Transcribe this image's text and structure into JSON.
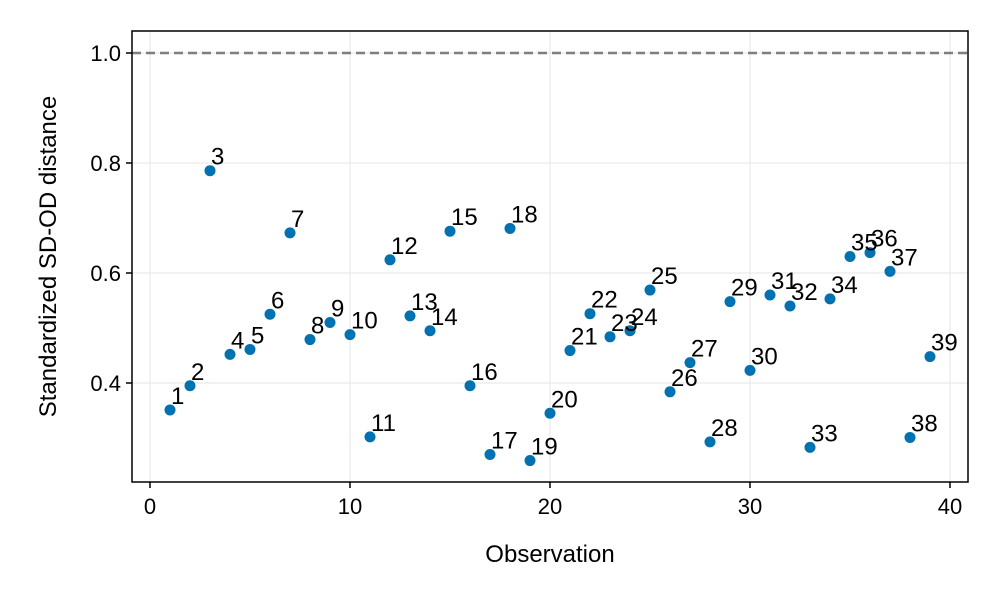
{
  "chart_data": {
    "type": "scatter",
    "xlabel": "Observation",
    "ylabel": "Standardized SD-OD distance",
    "xlim": [
      -0.9,
      40.9
    ],
    "ylim": [
      0.22,
      1.04
    ],
    "xticks": [
      0,
      10,
      20,
      30,
      40
    ],
    "yticks": [
      0.4,
      0.6,
      0.8,
      1.0
    ],
    "ytick_labels": [
      "0.4",
      "0.6",
      "0.8",
      "1.0"
    ],
    "grid": true,
    "cutoff_line": 1.0,
    "point_color": "#0072B2",
    "cutoff_color": "#7f7f7f",
    "points": [
      {
        "x": 1,
        "y": 0.351,
        "label": "1"
      },
      {
        "x": 2,
        "y": 0.395,
        "label": "2"
      },
      {
        "x": 3,
        "y": 0.786,
        "label": "3"
      },
      {
        "x": 4,
        "y": 0.452,
        "label": "4"
      },
      {
        "x": 5,
        "y": 0.461,
        "label": "5"
      },
      {
        "x": 6,
        "y": 0.525,
        "label": "6"
      },
      {
        "x": 7,
        "y": 0.673,
        "label": "7"
      },
      {
        "x": 8,
        "y": 0.479,
        "label": "8"
      },
      {
        "x": 9,
        "y": 0.51,
        "label": "9"
      },
      {
        "x": 10,
        "y": 0.488,
        "label": "10"
      },
      {
        "x": 11,
        "y": 0.302,
        "label": "11"
      },
      {
        "x": 12,
        "y": 0.624,
        "label": "12"
      },
      {
        "x": 13,
        "y": 0.522,
        "label": "13"
      },
      {
        "x": 14,
        "y": 0.495,
        "label": "14"
      },
      {
        "x": 15,
        "y": 0.676,
        "label": "15"
      },
      {
        "x": 16,
        "y": 0.395,
        "label": "16"
      },
      {
        "x": 17,
        "y": 0.27,
        "label": "17"
      },
      {
        "x": 18,
        "y": 0.681,
        "label": "18"
      },
      {
        "x": 19,
        "y": 0.259,
        "label": "19"
      },
      {
        "x": 20,
        "y": 0.345,
        "label": "20"
      },
      {
        "x": 21,
        "y": 0.459,
        "label": "21"
      },
      {
        "x": 22,
        "y": 0.526,
        "label": "22"
      },
      {
        "x": 23,
        "y": 0.484,
        "label": "23"
      },
      {
        "x": 24,
        "y": 0.495,
        "label": "24"
      },
      {
        "x": 25,
        "y": 0.569,
        "label": "25"
      },
      {
        "x": 26,
        "y": 0.384,
        "label": "26"
      },
      {
        "x": 27,
        "y": 0.437,
        "label": "27"
      },
      {
        "x": 28,
        "y": 0.293,
        "label": "28"
      },
      {
        "x": 29,
        "y": 0.548,
        "label": "29"
      },
      {
        "x": 30,
        "y": 0.423,
        "label": "30"
      },
      {
        "x": 31,
        "y": 0.56,
        "label": "31"
      },
      {
        "x": 32,
        "y": 0.54,
        "label": "32"
      },
      {
        "x": 33,
        "y": 0.283,
        "label": "33"
      },
      {
        "x": 34,
        "y": 0.553,
        "label": "34"
      },
      {
        "x": 35,
        "y": 0.63,
        "label": "35"
      },
      {
        "x": 36,
        "y": 0.637,
        "label": "36"
      },
      {
        "x": 37,
        "y": 0.603,
        "label": "37"
      },
      {
        "x": 38,
        "y": 0.301,
        "label": "38"
      },
      {
        "x": 39,
        "y": 0.448,
        "label": "39"
      }
    ]
  }
}
